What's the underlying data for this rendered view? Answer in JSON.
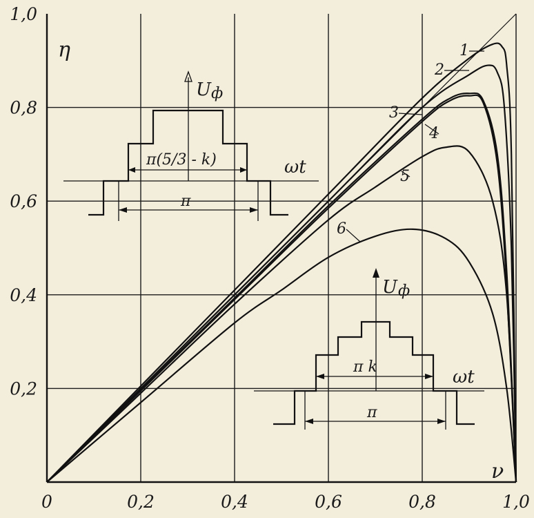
{
  "chart_data": {
    "type": "line",
    "title": "",
    "xlabel": "ν",
    "ylabel": "η",
    "xlim": [
      0,
      1.0
    ],
    "ylim": [
      0,
      1.0
    ],
    "grid": true,
    "x_ticks": [
      "0",
      "0,2",
      "0,4",
      "0,6",
      "0,8",
      "1,0"
    ],
    "y_ticks": [
      "0,2",
      "0,4",
      "0,6",
      "0,8",
      "1,0"
    ],
    "series": [
      {
        "name": "1",
        "x": [
          0,
          0.2,
          0.4,
          0.6,
          0.8,
          0.9,
          0.95,
          0.97,
          0.98,
          0.99,
          1.0
        ],
        "y": [
          0,
          0.205,
          0.41,
          0.615,
          0.82,
          0.905,
          0.935,
          0.93,
          0.89,
          0.7,
          0
        ]
      },
      {
        "name": "2",
        "x": [
          0,
          0.2,
          0.4,
          0.6,
          0.8,
          0.9,
          0.94,
          0.96,
          0.975,
          0.99,
          1.0
        ],
        "y": [
          0,
          0.2,
          0.4,
          0.6,
          0.8,
          0.87,
          0.89,
          0.875,
          0.8,
          0.5,
          0
        ]
      },
      {
        "name": "3",
        "x": [
          0,
          0.2,
          0.4,
          0.6,
          0.8,
          0.86,
          0.9,
          0.93,
          0.96,
          0.98,
          1.0
        ],
        "y": [
          0,
          0.197,
          0.393,
          0.59,
          0.775,
          0.82,
          0.83,
          0.815,
          0.7,
          0.45,
          0
        ]
      },
      {
        "name": "4",
        "x": [
          0,
          0.2,
          0.4,
          0.6,
          0.8,
          0.86,
          0.9,
          0.93,
          0.96,
          0.98,
          1.0
        ],
        "y": [
          0,
          0.195,
          0.39,
          0.585,
          0.77,
          0.815,
          0.825,
          0.81,
          0.68,
          0.42,
          0
        ]
      },
      {
        "name": "5",
        "x": [
          0,
          0.2,
          0.4,
          0.6,
          0.7,
          0.8,
          0.85,
          0.9,
          0.95,
          0.98,
          1.0
        ],
        "y": [
          0,
          0.19,
          0.38,
          0.56,
          0.63,
          0.695,
          0.715,
          0.705,
          0.6,
          0.4,
          0
        ]
      },
      {
        "name": "6",
        "x": [
          0,
          0.2,
          0.4,
          0.5,
          0.6,
          0.7,
          0.78,
          0.85,
          0.9,
          0.95,
          0.98,
          1.0
        ],
        "y": [
          0,
          0.17,
          0.34,
          0.41,
          0.48,
          0.525,
          0.54,
          0.52,
          0.47,
          0.36,
          0.2,
          0
        ]
      }
    ],
    "insets": [
      {
        "ylabel": "U",
        "ysub": "ф",
        "xlabel": "ωt",
        "inner_label": "π(5/3 - k)",
        "outer_label": "π"
      },
      {
        "ylabel": "U",
        "ysub": "ф",
        "xlabel": "ωt",
        "inner_label": "π k",
        "outer_label": "π"
      }
    ],
    "inset_fraction": {
      "num": "5",
      "den": "3"
    }
  }
}
